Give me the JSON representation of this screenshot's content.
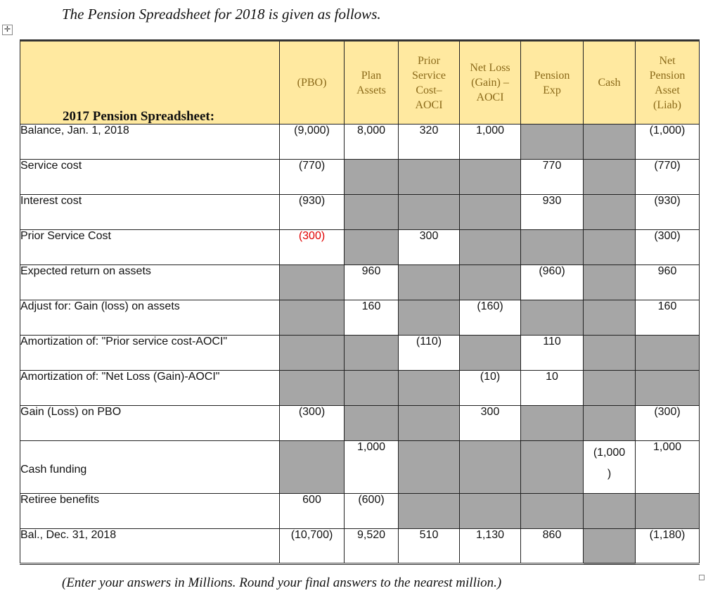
{
  "title": "The Pension Spreadsheet for 2018 is given as follows.",
  "table": {
    "corner_label": "2017 Pension Spreadsheet:",
    "columns": [
      "(PBO)",
      "Plan Assets",
      "Prior Service Cost– AOCI",
      "Net Loss (Gain) – AOCI",
      "Pension Exp",
      "Cash",
      "Net Pension Asset (Liab)"
    ],
    "header_colors": {
      "background": "#FFE9A0",
      "text": "#8B6A1A",
      "shaded_cell": "#A6A6A6",
      "highlight_text": "#e00000"
    },
    "rows": [
      {
        "label": "Balance, Jan. 1, 2018",
        "cells": [
          "(9,000)",
          "8,000",
          "320",
          "1,000",
          null,
          null,
          "(1,000)"
        ]
      },
      {
        "label": "Service cost",
        "cells": [
          "(770)",
          null,
          null,
          null,
          "770",
          null,
          "(770)"
        ]
      },
      {
        "label": "Interest cost",
        "cells": [
          "(930)",
          null,
          null,
          null,
          "930",
          null,
          "(930)"
        ]
      },
      {
        "label": "Prior Service Cost",
        "cells": [
          "(300)",
          null,
          "300",
          null,
          null,
          null,
          "(300)"
        ],
        "red_cells": [
          0
        ]
      },
      {
        "label": "Expected return on assets",
        "cells": [
          null,
          "960",
          null,
          null,
          "(960)",
          null,
          "960"
        ]
      },
      {
        "label": "Adjust for: Gain (loss) on assets",
        "cells": [
          null,
          "160",
          null,
          "(160)",
          null,
          null,
          "160"
        ]
      },
      {
        "label": "Amortization of: \"Prior service cost-AOCI\"",
        "cells": [
          null,
          null,
          "(110)",
          null,
          "110",
          null,
          null
        ]
      },
      {
        "label": "Amortization of: \"Net Loss (Gain)-AOCI\"",
        "cells": [
          null,
          null,
          null,
          "(10)",
          "10",
          null,
          null
        ]
      },
      {
        "label": "Gain (Loss) on PBO",
        "cells": [
          "(300)",
          null,
          null,
          "300",
          null,
          null,
          "(300)"
        ]
      },
      {
        "label": "Cash funding",
        "cells": [
          null,
          "1,000",
          null,
          null,
          null,
          "(1,000\n)",
          "1,000"
        ],
        "tall": true
      },
      {
        "label": "Retiree benefits",
        "cells": [
          "600",
          "(600)",
          null,
          null,
          null,
          null,
          null
        ]
      },
      {
        "label": "Bal., Dec. 31, 2018",
        "cells": [
          "(10,700)",
          "9,520",
          "510",
          "1,130",
          "860",
          null,
          "(1,180)"
        ]
      }
    ]
  },
  "footnote": "(Enter your answers in Millions. Round your final answers to the nearest million.)"
}
